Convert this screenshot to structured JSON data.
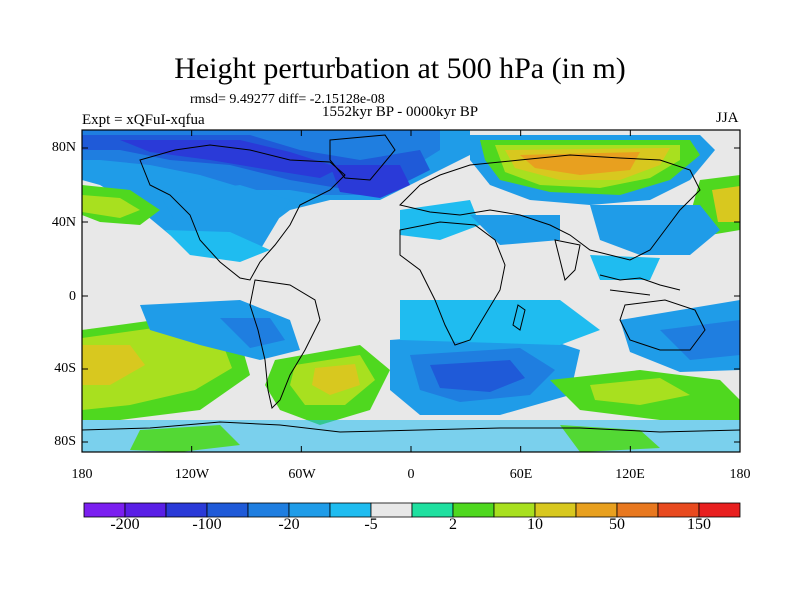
{
  "title": "Height perturbation at 500 hPa (in m)",
  "stats": "rmsd= 9.49277 diff= -2.15128e-08",
  "experiment": "Expt = xQFuI-xqfua",
  "period": "1552kyr BP - 0000kyr BP",
  "season": "JJA",
  "axes": {
    "x_ticks": [
      "180",
      "120W",
      "60W",
      "0",
      "60E",
      "120E",
      "180"
    ],
    "y_ticks": [
      "80N",
      "40N",
      "0",
      "40S",
      "80S"
    ]
  },
  "colorbar": {
    "colors": [
      "#7b1ff0",
      "#5a1fe6",
      "#2a3ad8",
      "#1f5ad8",
      "#1f7ee0",
      "#1f9ce8",
      "#1fbcf0",
      "#e8e8e8",
      "#1fe0a0",
      "#4fd81f",
      "#a8e01f",
      "#d8c81f",
      "#e8a01f",
      "#e8781f",
      "#e84a1f",
      "#e81f1f"
    ],
    "labels": [
      "-200",
      "-100",
      "-20",
      "-5",
      "2",
      "10",
      "50",
      "150"
    ]
  }
}
